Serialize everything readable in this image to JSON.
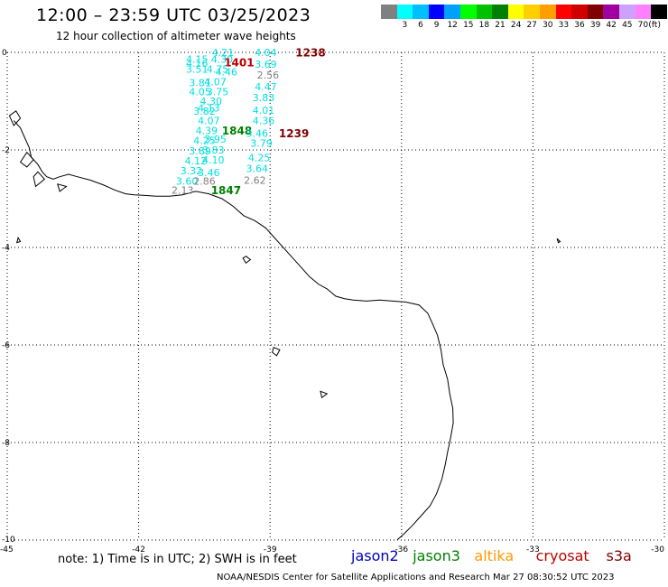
{
  "header": {
    "title": "12:00 – 23:59 UTC 03/25/2023",
    "subtitle": "12 hour collection of altimeter wave heights"
  },
  "legend": {
    "unit": "(ft)",
    "bins": [
      {
        "label": "",
        "color": "#808080"
      },
      {
        "label": "3",
        "color": "#00ffff"
      },
      {
        "label": "6",
        "color": "#00bfff"
      },
      {
        "label": "9",
        "color": "#0000ff"
      },
      {
        "label": "12",
        "color": "#00a0ff"
      },
      {
        "label": "15",
        "color": "#00ff00"
      },
      {
        "label": "18",
        "color": "#00c000"
      },
      {
        "label": "21",
        "color": "#008000"
      },
      {
        "label": "24",
        "color": "#ffff00"
      },
      {
        "label": "27",
        "color": "#ffd000"
      },
      {
        "label": "30",
        "color": "#ffa000"
      },
      {
        "label": "33",
        "color": "#ff0000"
      },
      {
        "label": "36",
        "color": "#d00000"
      },
      {
        "label": "39",
        "color": "#800000"
      },
      {
        "label": "42",
        "color": "#a000a0"
      },
      {
        "label": "45",
        "color": "#d0a0ff"
      },
      {
        "label": "70",
        "color": "#ff80ff"
      },
      {
        "label": "",
        "color": "#000000"
      }
    ]
  },
  "map": {
    "lon_range": [
      -45,
      -30
    ],
    "lat_range": [
      -10,
      0
    ],
    "lat_labels": [
      "0",
      "-2",
      "-4",
      "-6",
      "-8",
      "-10"
    ],
    "lon_labels": [
      "-45",
      "-42",
      "-39",
      "-36",
      "-33",
      "-30"
    ],
    "coast_color": "#000000",
    "grid_color": "#000000",
    "observations": [
      {
        "text": "4.21",
        "lon": -40.33,
        "lat": -0.02,
        "color": "#00e0e0"
      },
      {
        "text": "4.04",
        "lon": -39.35,
        "lat": -0.02,
        "color": "#00e0e0"
      },
      {
        "text": "1238",
        "lon": -38.42,
        "lat": -0.02,
        "color": "#800000"
      },
      {
        "text": "4.15",
        "lon": -40.92,
        "lat": -0.16,
        "color": "#00e0e0"
      },
      {
        "text": "4.30",
        "lon": -40.35,
        "lat": -0.16,
        "color": "#00e0e0"
      },
      {
        "text": "1401",
        "lon": -40.05,
        "lat": -0.22,
        "color": "#c00000"
      },
      {
        "text": "3.69",
        "lon": -39.35,
        "lat": -0.26,
        "color": "#00e0e0"
      },
      {
        "text": "4.16",
        "lon": -40.92,
        "lat": -0.24,
        "color": "#00e0e0"
      },
      {
        "text": "3.51",
        "lon": -40.92,
        "lat": -0.36,
        "color": "#00e0e0"
      },
      {
        "text": "4.75",
        "lon": -40.45,
        "lat": -0.36,
        "color": "#00e0e0"
      },
      {
        "text": "4.46",
        "lon": -40.25,
        "lat": -0.42,
        "color": "#00e0e0"
      },
      {
        "text": "2.56",
        "lon": -39.3,
        "lat": -0.48,
        "color": "#808080"
      },
      {
        "text": "3.81",
        "lon": -40.85,
        "lat": -0.64,
        "color": "#00e0e0"
      },
      {
        "text": "4.07",
        "lon": -40.5,
        "lat": -0.62,
        "color": "#00e0e0"
      },
      {
        "text": "4.47",
        "lon": -39.35,
        "lat": -0.72,
        "color": "#00e0e0"
      },
      {
        "text": "4.05",
        "lon": -40.85,
        "lat": -0.82,
        "color": "#00e0e0"
      },
      {
        "text": "3.75",
        "lon": -40.45,
        "lat": -0.82,
        "color": "#00e0e0"
      },
      {
        "text": "4.30",
        "lon": -40.6,
        "lat": -1.02,
        "color": "#00e0e0"
      },
      {
        "text": "3.83",
        "lon": -39.4,
        "lat": -0.94,
        "color": "#00e0e0"
      },
      {
        "text": "4.13",
        "lon": -40.65,
        "lat": -1.16,
        "color": "#00e0e0"
      },
      {
        "text": "3.82",
        "lon": -40.75,
        "lat": -1.22,
        "color": "#00e0e0"
      },
      {
        "text": "4.01",
        "lon": -39.4,
        "lat": -1.2,
        "color": "#00e0e0"
      },
      {
        "text": "4.07",
        "lon": -40.65,
        "lat": -1.42,
        "color": "#00e0e0"
      },
      {
        "text": "4.36",
        "lon": -39.4,
        "lat": -1.42,
        "color": "#00e0e0"
      },
      {
        "text": "4.39",
        "lon": -40.7,
        "lat": -1.62,
        "color": "#00e0e0"
      },
      {
        "text": "1848",
        "lon": -40.1,
        "lat": -1.62,
        "color": "#008000"
      },
      {
        "text": "3.46",
        "lon": -39.55,
        "lat": -1.68,
        "color": "#00e0e0"
      },
      {
        "text": "1239",
        "lon": -38.8,
        "lat": -1.68,
        "color": "#800000"
      },
      {
        "text": "4.25",
        "lon": -40.75,
        "lat": -1.82,
        "color": "#00e0e0"
      },
      {
        "text": "3.95",
        "lon": -40.5,
        "lat": -1.8,
        "color": "#00e0e0"
      },
      {
        "text": "3.79",
        "lon": -39.45,
        "lat": -1.88,
        "color": "#00e0e0"
      },
      {
        "text": "3.89",
        "lon": -40.85,
        "lat": -2.04,
        "color": "#00e0e0"
      },
      {
        "text": "3.83",
        "lon": -40.55,
        "lat": -2.02,
        "color": "#00e0e0"
      },
      {
        "text": "4.12",
        "lon": -40.95,
        "lat": -2.24,
        "color": "#00e0e0"
      },
      {
        "text": "4.10",
        "lon": -40.55,
        "lat": -2.22,
        "color": "#00e0e0"
      },
      {
        "text": "4.25",
        "lon": -39.5,
        "lat": -2.18,
        "color": "#00e0e0"
      },
      {
        "text": "3.32",
        "lon": -41.05,
        "lat": -2.44,
        "color": "#00e0e0"
      },
      {
        "text": "3.46",
        "lon": -40.65,
        "lat": -2.48,
        "color": "#00e0e0"
      },
      {
        "text": "3.64",
        "lon": -39.55,
        "lat": -2.4,
        "color": "#00e0e0"
      },
      {
        "text": "3.60",
        "lon": -41.15,
        "lat": -2.66,
        "color": "#00e0e0"
      },
      {
        "text": "2.86",
        "lon": -40.75,
        "lat": -2.66,
        "color": "#808080"
      },
      {
        "text": "2.62",
        "lon": -39.6,
        "lat": -2.64,
        "color": "#808080"
      },
      {
        "text": "2.13",
        "lon": -41.25,
        "lat": -2.84,
        "color": "#808080"
      },
      {
        "text": "1847",
        "lon": -40.35,
        "lat": -2.84,
        "color": "#008000"
      }
    ]
  },
  "footer": {
    "note": "note:  1) Time is in UTC;  2) SWH is in feet",
    "satellites": [
      {
        "name": "jason2",
        "color": "#0000c0"
      },
      {
        "name": "jason3",
        "color": "#008000"
      },
      {
        "name": "altika",
        "color": "#ff9900"
      },
      {
        "name": "cryosat",
        "color": "#c00000"
      },
      {
        "name": "s3a",
        "color": "#800000"
      }
    ],
    "credit": "NOAA/NESDIS Center for Satellite Applications and Research     Mar 27 08:30:52 UTC 2023"
  }
}
